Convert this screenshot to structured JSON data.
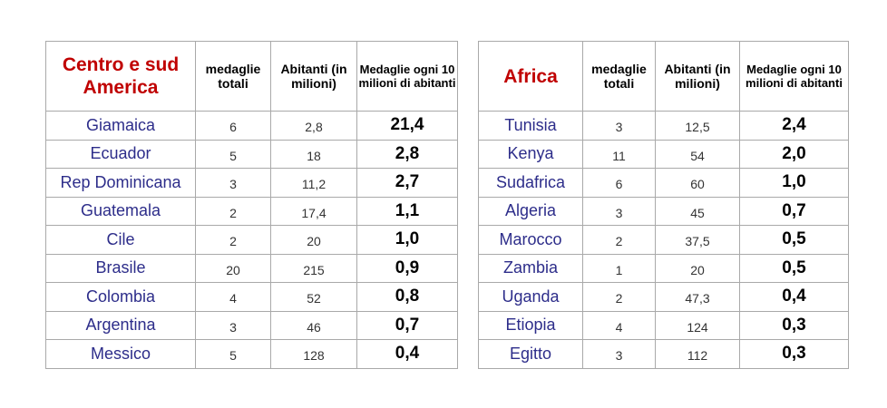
{
  "tables": [
    {
      "region": "Centro e sud America",
      "headers": {
        "medals": "medaglie totali",
        "population": "Abitanti (in milioni)",
        "rate": "Medaglie ogni 10 milioni di abitanti"
      },
      "rows": [
        {
          "country": "Giamaica",
          "medals": "6",
          "population": "2,8",
          "rate": "21,4"
        },
        {
          "country": "Ecuador",
          "medals": "5",
          "population": "18",
          "rate": "2,8"
        },
        {
          "country": "Rep Dominicana",
          "medals": "3",
          "population": "11,2",
          "rate": "2,7"
        },
        {
          "country": "Guatemala",
          "medals": "2",
          "population": "17,4",
          "rate": "1,1"
        },
        {
          "country": "Cile",
          "medals": "2",
          "population": "20",
          "rate": "1,0"
        },
        {
          "country": "Brasile",
          "medals": "20",
          "population": "215",
          "rate": "0,9"
        },
        {
          "country": "Colombia",
          "medals": "4",
          "population": "52",
          "rate": "0,8"
        },
        {
          "country": "Argentina",
          "medals": "3",
          "population": "46",
          "rate": "0,7"
        },
        {
          "country": "Messico",
          "medals": "5",
          "population": "128",
          "rate": "0,4"
        }
      ]
    },
    {
      "region": "Africa",
      "headers": {
        "medals": "medaglie totali",
        "population": "Abitanti (in milioni)",
        "rate": "Medaglie ogni 10 milioni di abitanti"
      },
      "rows": [
        {
          "country": "Tunisia",
          "medals": "3",
          "population": "12,5",
          "rate": "2,4"
        },
        {
          "country": "Kenya",
          "medals": "11",
          "population": "54",
          "rate": "2,0"
        },
        {
          "country": "Sudafrica",
          "medals": "6",
          "population": "60",
          "rate": "1,0"
        },
        {
          "country": "Algeria",
          "medals": "3",
          "population": "45",
          "rate": "0,7"
        },
        {
          "country": "Marocco",
          "medals": "2",
          "population": "37,5",
          "rate": "0,5"
        },
        {
          "country": "Zambia",
          "medals": "1",
          "population": "20",
          "rate": "0,5"
        },
        {
          "country": "Uganda",
          "medals": "2",
          "population": "47,3",
          "rate": "0,4"
        },
        {
          "country": "Etiopia",
          "medals": "4",
          "population": "124",
          "rate": "0,3"
        },
        {
          "country": "Egitto",
          "medals": "3",
          "population": "112",
          "rate": "0,3"
        }
      ]
    }
  ],
  "colors": {
    "region_title": "#c00000",
    "country_name": "#2d2d8a",
    "border": "#a9a9a9"
  }
}
